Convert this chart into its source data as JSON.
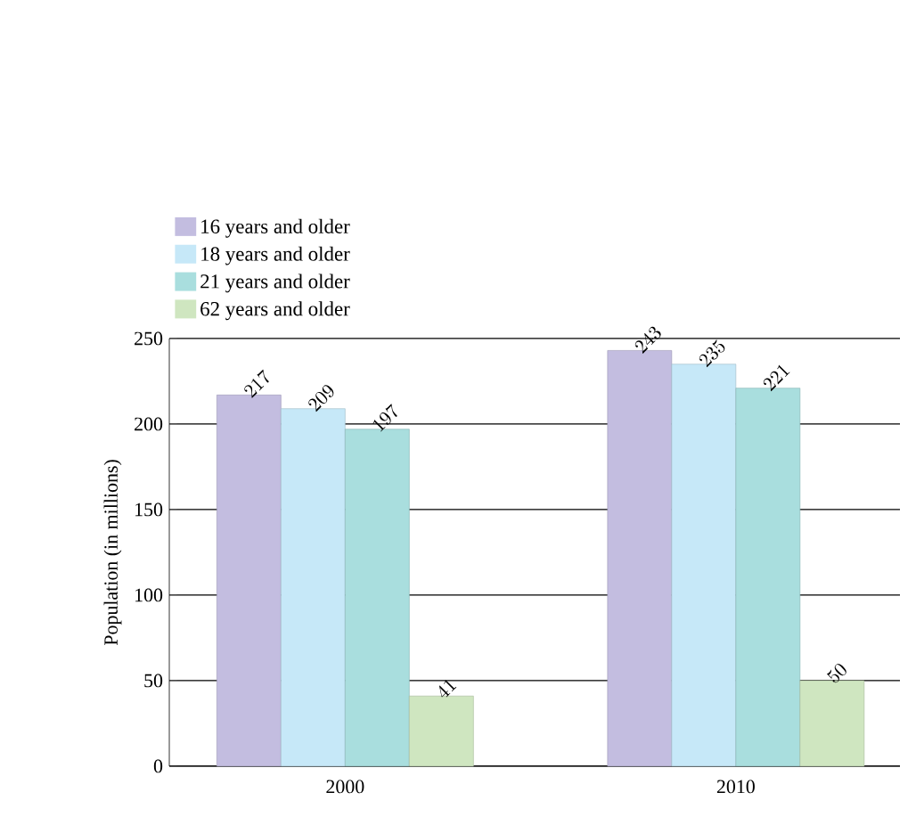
{
  "chart_data": {
    "type": "bar",
    "ylabel": "Population (in millions)",
    "categories": [
      "2000",
      "2010"
    ],
    "series": [
      {
        "name": "16 years and older",
        "color": "#c3bde0",
        "values": [
          217,
          243
        ]
      },
      {
        "name": "18 years and older",
        "color": "#c6e8f8",
        "values": [
          209,
          235
        ]
      },
      {
        "name": "21 years and older",
        "color": "#a9dede",
        "values": [
          197,
          221
        ]
      },
      {
        "name": "62 years and older",
        "color": "#cfe6c0",
        "values": [
          41,
          50
        ]
      }
    ],
    "ylim": [
      0,
      250
    ],
    "yticks": [
      0,
      50,
      100,
      150,
      200,
      250
    ],
    "grid": "y",
    "legend": "top left",
    "data_labels": true
  }
}
